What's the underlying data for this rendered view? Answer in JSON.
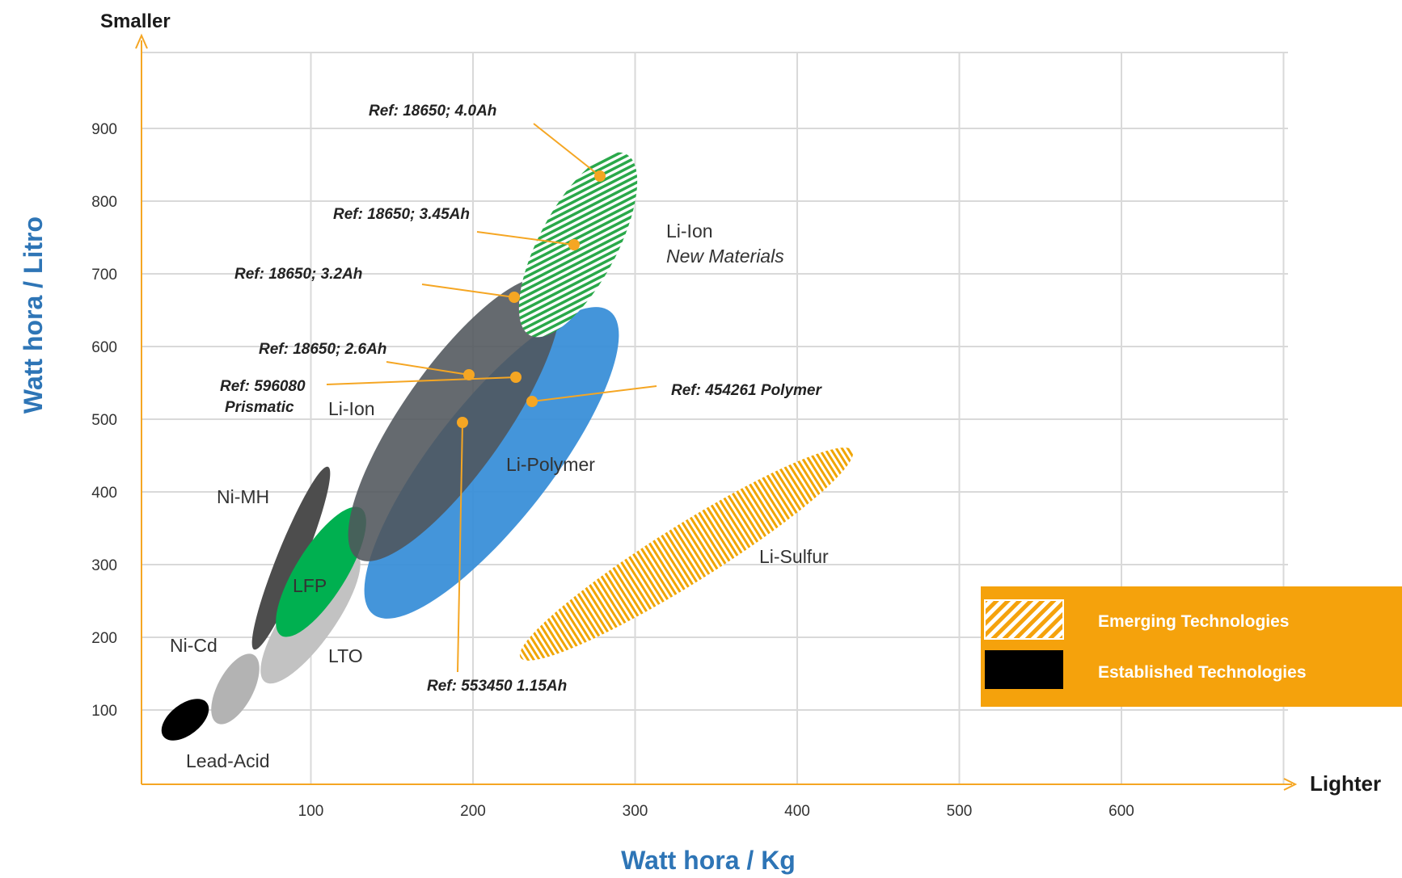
{
  "chart_data": {
    "type": "scatter",
    "title": "",
    "xlabel": "Watt hora / Kg",
    "ylabel": "Watt hora / Litro",
    "x_direction_label": "Lighter",
    "y_direction_label": "Smaller",
    "xlim": [
      0,
      700
    ],
    "ylim": [
      0,
      1000
    ],
    "x_ticks": [
      "100",
      "200",
      "300",
      "400",
      "500",
      "600"
    ],
    "y_ticks": [
      "100",
      "200",
      "300",
      "400",
      "500",
      "600",
      "700",
      "800",
      "900"
    ],
    "grid": true,
    "regions": [
      {
        "label": "Lead-Acid",
        "x": [
          16,
          40
        ],
        "y": [
          58,
          115
        ],
        "color": "#000000",
        "style": "solid"
      },
      {
        "label": "Ni-Cd",
        "x": [
          42,
          80
        ],
        "y": [
          80,
          180
        ],
        "color": "#b3b3b3",
        "style": "solid"
      },
      {
        "label": "LTO",
        "x": [
          78,
          128
        ],
        "y": [
          130,
          300
        ],
        "color": "#c2c2c2",
        "style": "solid"
      },
      {
        "label": "Ni-MH",
        "x": [
          70,
          112
        ],
        "y": [
          205,
          420
        ],
        "color": "#4d4d4d",
        "style": "solid"
      },
      {
        "label": "LFP",
        "x": [
          80,
          130
        ],
        "y": [
          195,
          350
        ],
        "color": "#00b050",
        "style": "solid"
      },
      {
        "label": "Li-Polymer",
        "x": [
          125,
          310
        ],
        "y": [
          265,
          645
        ],
        "color": "#3a8fd8",
        "style": "solid"
      },
      {
        "label": "Li-Ion",
        "x": [
          128,
          262
        ],
        "y": [
          300,
          700
        ],
        "color": "#555a60",
        "style": "solid"
      },
      {
        "label": "Li-Ion New Materials",
        "x": [
          232,
          295
        ],
        "y": [
          600,
          870
        ],
        "color": "#2aa84a",
        "style": "hatched"
      },
      {
        "label": "Li-Sulfur",
        "x": [
          220,
          450
        ],
        "y": [
          195,
          505
        ],
        "color": "#f0a500",
        "style": "hatched"
      }
    ],
    "annotations": [
      {
        "label": "Ref: 18650; 4.0Ah",
        "x": 280,
        "y": 830
      },
      {
        "label": "Ref: 18650; 3.45Ah",
        "x": 265,
        "y": 735
      },
      {
        "label": "Ref: 18650; 3.2Ah",
        "x": 228,
        "y": 665
      },
      {
        "label": "Ref: 18650; 2.6Ah",
        "x": 198,
        "y": 560
      },
      {
        "label": "Ref: 596080 Prismatic",
        "x": 228,
        "y": 555
      },
      {
        "label": "Ref: 454261 Polymer",
        "x": 238,
        "y": 522
      },
      {
        "label": "Ref: 553450 1.15Ah",
        "x": 195,
        "y": 495
      }
    ],
    "region_text": {
      "lead_acid": "Lead-Acid",
      "ni_cd": "Ni-Cd",
      "lto": "LTO",
      "ni_mh": "Ni-MH",
      "lfp": "LFP",
      "li_ion": "Li-Ion",
      "li_polymer": "Li-Polymer",
      "li_sulfur": "Li-Sulfur",
      "new_materials_line1": "Li-Ion",
      "new_materials_line2": "New Materials"
    },
    "ref_text": {
      "r40": "Ref: 18650; 4.0Ah",
      "r345": "Ref: 18650; 3.45Ah",
      "r32": "Ref: 18650; 3.2Ah",
      "r26": "Ref: 18650; 2.6Ah",
      "r596_line1": "Ref: 596080",
      "r596_line2": "Prismatic",
      "r454": "Ref: 454261 Polymer",
      "r553": "Ref: 553450 1.15Ah"
    },
    "legend": {
      "position": "right",
      "background": "#f5a20c",
      "entries": [
        {
          "label": "Emerging Technologies",
          "swatch": "hatched"
        },
        {
          "label": "Established Technologies",
          "swatch": "solid"
        }
      ]
    }
  }
}
